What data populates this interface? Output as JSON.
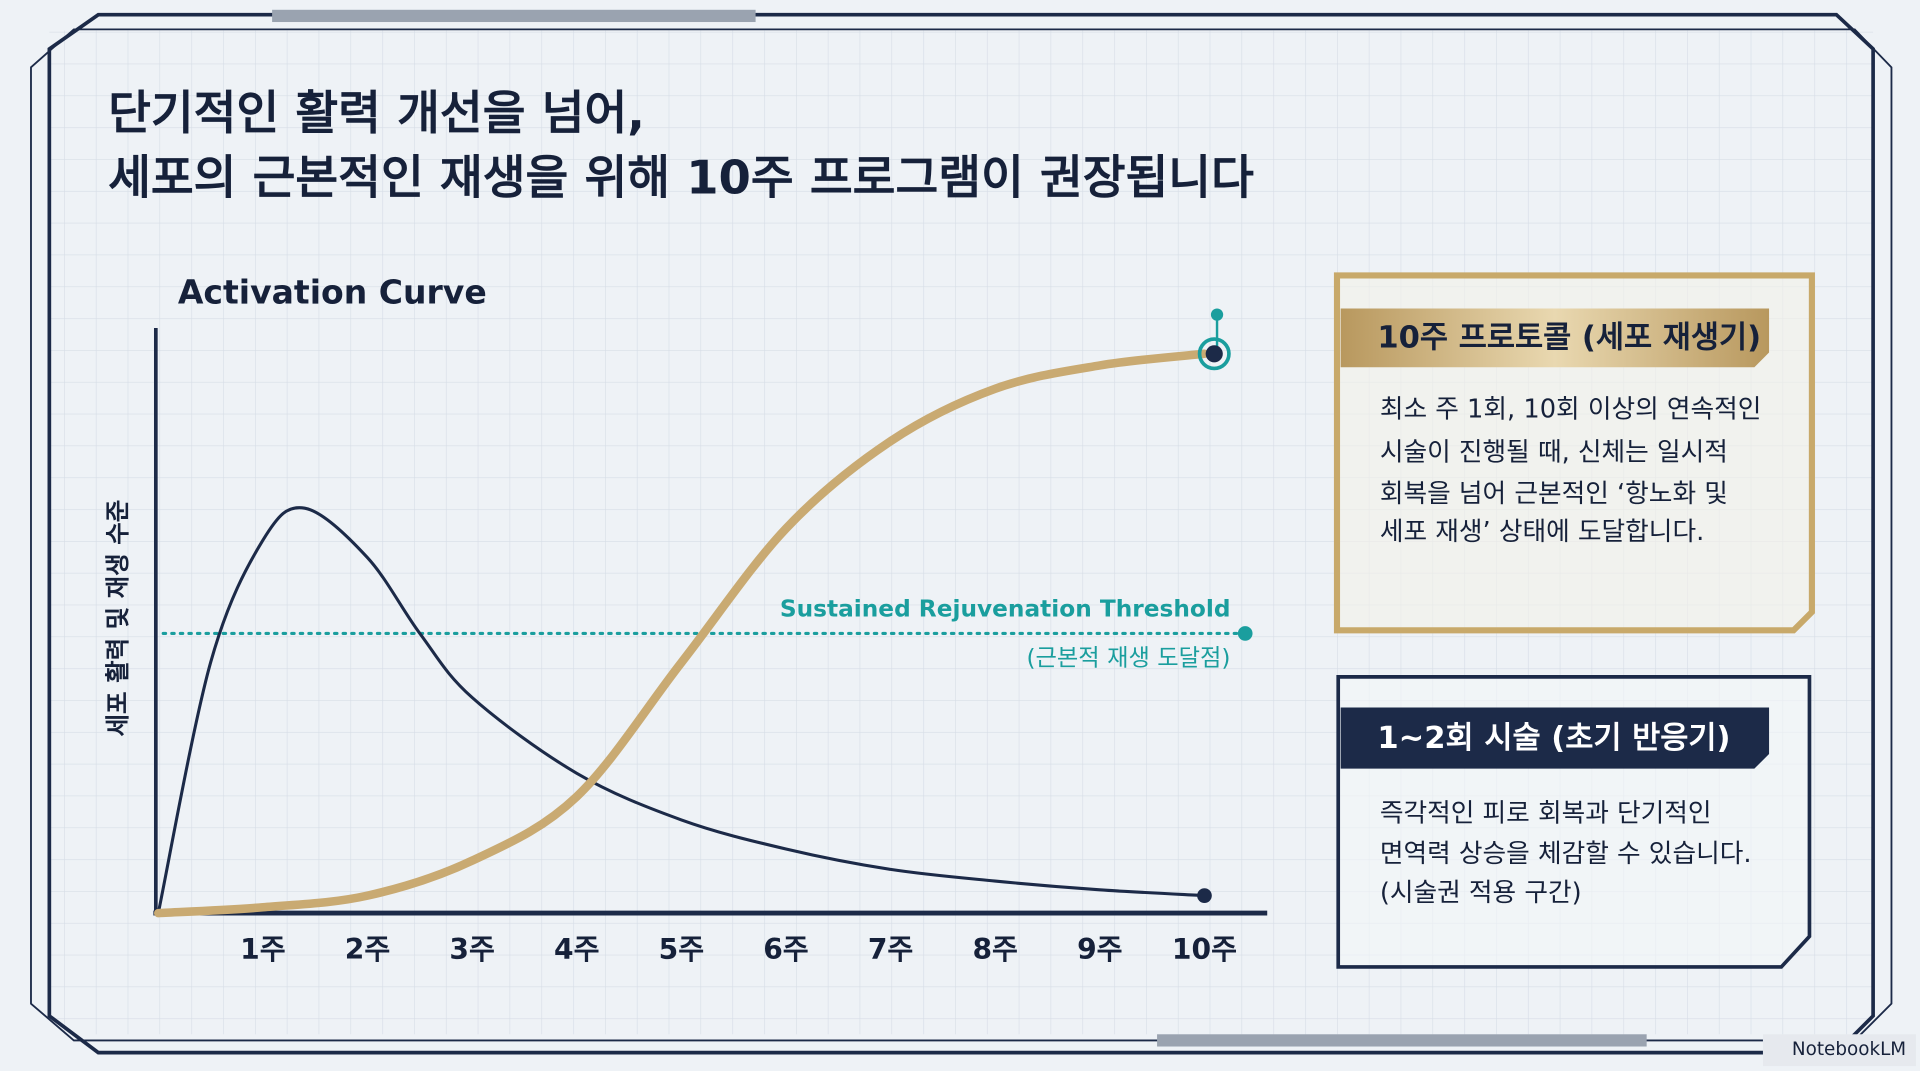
{
  "slide": {
    "title_lines": [
      "단기적인 활력 개선을 넘어,",
      "세포의 근본적인 재생을 위해 10주 프로그램이 권장됩니다"
    ],
    "brand": "NotebookLM"
  },
  "chart_data": {
    "type": "line",
    "title": "Activation Curve",
    "y_label": "세포 활력 및 재생 수준",
    "xlim": [
      0,
      10.6
    ],
    "ylim": [
      0,
      100
    ],
    "xticks": [
      {
        "value": 1,
        "label": "1주"
      },
      {
        "value": 2,
        "label": "2주"
      },
      {
        "value": 3,
        "label": "3주"
      },
      {
        "value": 4,
        "label": "4주"
      },
      {
        "value": 5,
        "label": "5주"
      },
      {
        "value": 6,
        "label": "6주"
      },
      {
        "value": 7,
        "label": "7주"
      },
      {
        "value": 8,
        "label": "8주"
      },
      {
        "value": 9,
        "label": "9주"
      },
      {
        "value": 10,
        "label": "10주"
      }
    ],
    "series": [
      {
        "color": "#1c2a48",
        "x": [
          0,
          0.5,
          1,
          1.4,
          2,
          2.5,
          3,
          4,
          5,
          6,
          7,
          8,
          9,
          10
        ],
        "values": [
          0,
          43,
          64,
          69.5,
          61,
          48,
          37,
          24,
          16,
          11,
          7.5,
          5.5,
          4,
          3
        ]
      },
      {
        "color": "#c9aa72",
        "x": [
          0,
          1,
          2,
          3,
          4,
          5,
          6,
          7,
          8,
          9,
          10
        ],
        "values": [
          0,
          1,
          3,
          9,
          20,
          43,
          66,
          81,
          90,
          94,
          96
        ]
      }
    ],
    "threshold": {
      "value": 48,
      "color": "#1a9e9e",
      "label": "Sustained Rejuvenation Threshold",
      "sublabel": "(근본적 재생 도달점)"
    }
  },
  "panels": [
    {
      "title": "10주 프로토콜 (세포 재생기)",
      "body": [
        "최소 주 1회, 10회 이상의 연속적인",
        "시술이 진행될 때, 신체는 일시적",
        "회복을 넘어 근본적인 ‘항노화 및",
        "세포 재생’ 상태에 도달합니다."
      ]
    },
    {
      "title": "1~2회 시술 (초기 반응기)",
      "body": [
        "즉각적인 피로 회복과 단기적인",
        "면역력 상승을 체감할 수 있습니다.",
        "(시술권 적용 구간)"
      ]
    }
  ]
}
